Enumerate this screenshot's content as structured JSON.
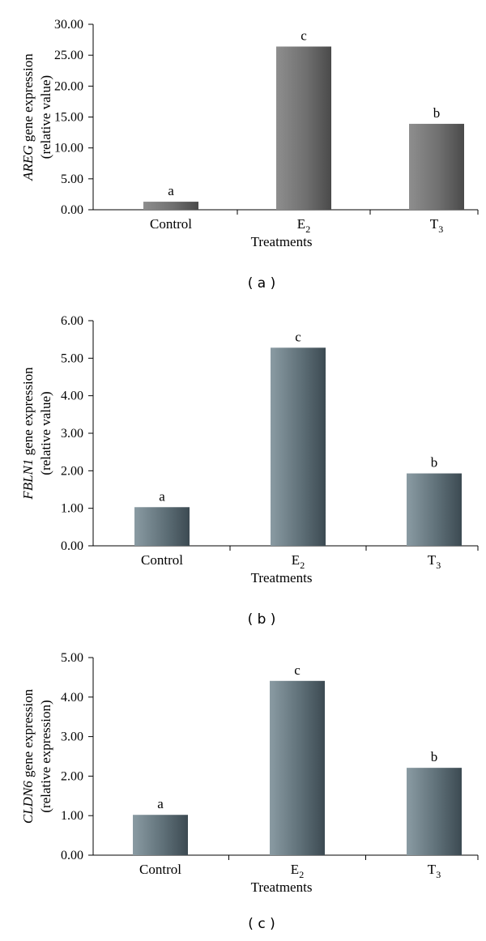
{
  "chart_data": [
    {
      "type": "bar",
      "panel_label": "( a )",
      "ylabel_gene": "AREG",
      "ylabel_rest": " gene expression",
      "ylabel_line2": "(relative value)",
      "xlabel": "Treatments",
      "categories": [
        {
          "main": "Control",
          "sub": ""
        },
        {
          "main": "E",
          "sub": "2"
        },
        {
          "main": "T",
          "sub": "3"
        }
      ],
      "values": [
        1.3,
        26.4,
        13.9
      ],
      "letters": [
        "a",
        "c",
        "b"
      ],
      "ylim": [
        0,
        30
      ],
      "yticks": [
        0,
        5,
        10,
        15,
        20,
        25,
        30
      ],
      "tick_labels": [
        "0.00",
        "5.00",
        "10.00",
        "15.00",
        "20.00",
        "25.00",
        "30.00"
      ],
      "colors": {
        "light": "#8e8e8e",
        "mid": "#6f6f6f",
        "dark": "#4a4a4a"
      }
    },
    {
      "type": "bar",
      "panel_label": "( b )",
      "ylabel_gene": "FBLN1",
      "ylabel_rest": " gene expression",
      "ylabel_line2": "(relative value)",
      "xlabel": "Treatments",
      "categories": [
        {
          "main": "Control",
          "sub": ""
        },
        {
          "main": "E",
          "sub": "2"
        },
        {
          "main": "T",
          "sub": "3"
        }
      ],
      "values": [
        1.03,
        5.28,
        1.93
      ],
      "letters": [
        "a",
        "c",
        "b"
      ],
      "ylim": [
        0,
        6
      ],
      "yticks": [
        0,
        1,
        2,
        3,
        4,
        5,
        6
      ],
      "tick_labels": [
        "0.00",
        "1.00",
        "2.00",
        "3.00",
        "4.00",
        "5.00",
        "6.00"
      ],
      "colors": {
        "light": "#8a9ba3",
        "mid": "#5f7078",
        "dark": "#3c4a52"
      }
    },
    {
      "type": "bar",
      "panel_label": "( c )",
      "ylabel_gene": "CLDN6",
      "ylabel_rest": " gene expression",
      "ylabel_line2": "(relative expression)",
      "xlabel": "Treatments",
      "categories": [
        {
          "main": "Control",
          "sub": ""
        },
        {
          "main": "E",
          "sub": "2"
        },
        {
          "main": "T",
          "sub": "3"
        }
      ],
      "values": [
        1.02,
        4.41,
        2.21
      ],
      "letters": [
        "a",
        "c",
        "b"
      ],
      "ylim": [
        0,
        5
      ],
      "yticks": [
        0,
        1,
        2,
        3,
        4,
        5
      ],
      "tick_labels": [
        "0.00",
        "1.00",
        "2.00",
        "3.00",
        "4.00",
        "5.00"
      ],
      "colors": {
        "light": "#8a9ba3",
        "mid": "#5f7078",
        "dark": "#3c4a52"
      }
    }
  ]
}
